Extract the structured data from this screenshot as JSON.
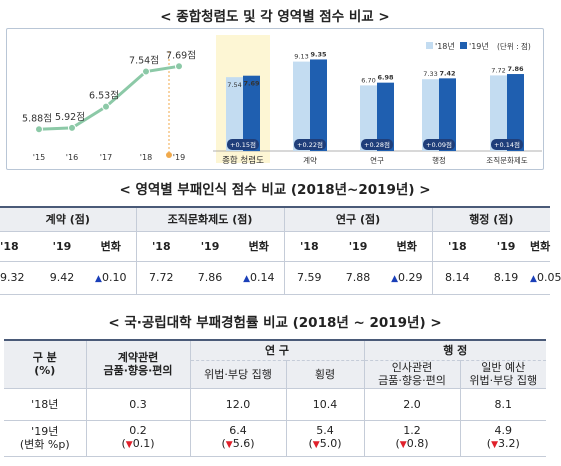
{
  "titles": {
    "s1": "< 종합청렴도 및 각 영역별 점수 비교 >",
    "s2": "< 영역별 부패인식 점수 비교 (2018년~2019년) >",
    "s3": "< 국·공립대학 부패경험률 비교 (2018년 ~ 2019년) >"
  },
  "chart_data": [
    {
      "type": "line",
      "x": [
        "'15",
        "'16",
        "'17",
        "'18",
        "'19"
      ],
      "values": [
        5.88,
        5.92,
        6.53,
        7.54,
        7.69
      ],
      "point_labels": [
        "5.88점",
        "5.92점",
        "6.53점",
        "7.54점",
        "7.69점"
      ],
      "colors": {
        "line": "#8cc9a7",
        "marker": "#8cc9a7",
        "divider": "#f0a94b"
      }
    },
    {
      "type": "bar",
      "categories": [
        "종합 청렴도",
        "계약",
        "연구",
        "행정",
        "조직문화제도"
      ],
      "legend": {
        "s1": "'18년",
        "s2": "'19년",
        "unit": "(단위 : 점)"
      },
      "series": [
        {
          "name": "'18년",
          "values": [
            7.54,
            9.13,
            6.7,
            7.33,
            7.72
          ],
          "labels": [
            "7.54",
            "9.13",
            "6.70",
            "7.33",
            "7.72"
          ]
        },
        {
          "name": "'19년",
          "values": [
            7.69,
            9.35,
            6.98,
            7.42,
            7.86
          ],
          "labels": [
            "7.69",
            "9.35",
            "6.98",
            "7.42",
            "7.86"
          ]
        }
      ],
      "changes": [
        "+0.15점",
        "+0.22점",
        "+0.28점",
        "+0.09점",
        "+0.14점"
      ],
      "highlight_bg": "#fdf6d4",
      "colors": {
        "s1": "#c3dcf1",
        "s2": "#1f5fb0",
        "badge": "#1f3e7a"
      }
    }
  ],
  "table2": {
    "groups": [
      "계약 (점)",
      "조직문화제도 (점)",
      "연구 (점)",
      "행정 (점)"
    ],
    "subheaders": [
      "'18",
      "'19",
      "변화"
    ],
    "rows": [
      {
        "v18": "9.32",
        "v19": "9.42",
        "chg": "0.10"
      },
      {
        "v18": "7.72",
        "v19": "7.86",
        "chg": "0.14"
      },
      {
        "v18": "7.59",
        "v19": "7.88",
        "chg": "0.29"
      },
      {
        "v18": "8.14",
        "v19": "8.19",
        "chg": "0.05"
      }
    ],
    "up_glyph": "▲"
  },
  "table3": {
    "h_gubun": "구 분",
    "h_pct": "(%)",
    "h_contract_1": "계약관련",
    "h_contract_2": "금품·향응·편의",
    "h_research": "연 구",
    "h_admin": "행 정",
    "h_r_unjust": "위법·부당 집행",
    "h_r_embezzle": "횡령",
    "h_a_personnel_1": "인사관련",
    "h_a_personnel_2": "금품·향응·편의",
    "h_a_budget_1": "일반 예산",
    "h_a_budget_2": "위법·부당 집행",
    "row18": {
      "label": "'18년",
      "vals": [
        "0.3",
        "12.0",
        "10.4",
        "2.0",
        "8.1"
      ]
    },
    "row19": {
      "label": "'19년",
      "sub": "(변화 %p)",
      "vals": [
        "0.2",
        "6.4",
        "5.4",
        "1.2",
        "4.9"
      ],
      "chg": [
        "0.1",
        "5.6",
        "5.0",
        "0.8",
        "3.2"
      ]
    },
    "down_glyph": "▼"
  }
}
